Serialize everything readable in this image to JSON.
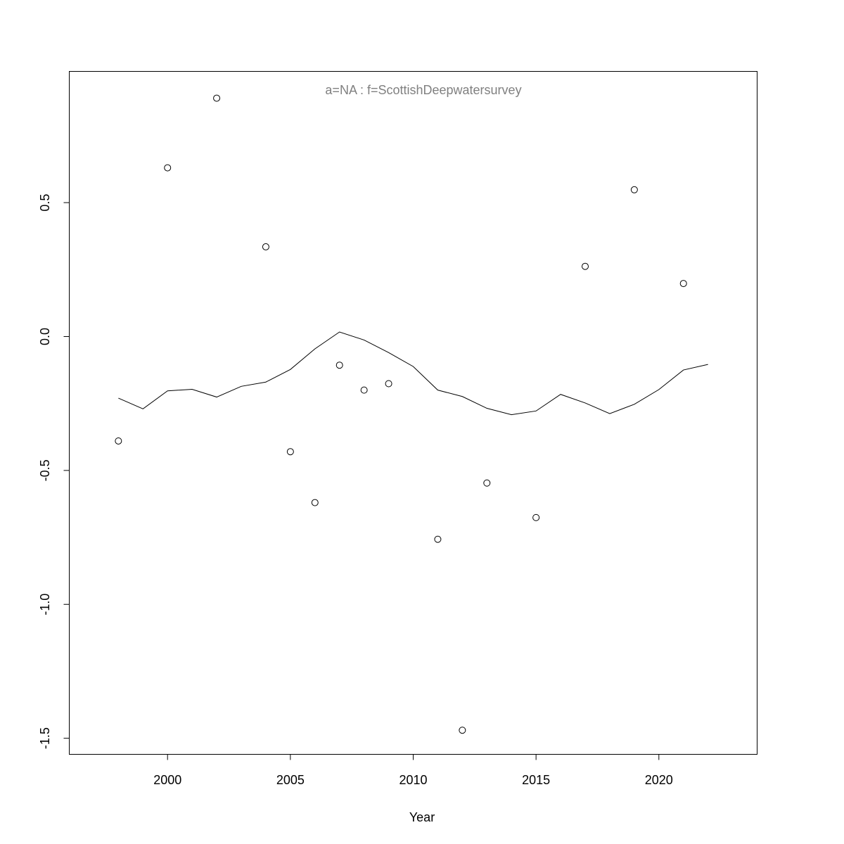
{
  "chart_data": {
    "type": "scatter",
    "title": "a=NA  :  f=ScottishDeepwatersurvey",
    "xlabel": "Year",
    "ylabel": "",
    "xlim": [
      1996,
      2024
    ],
    "ylim": [
      -1.56,
      0.99
    ],
    "xticks": [
      2000,
      2005,
      2010,
      2015,
      2020
    ],
    "yticks": [
      -1.5,
      -1.0,
      -0.5,
      0.0,
      0.5
    ],
    "ytick_labels": [
      "-1.5",
      "-1.0",
      "-0.5",
      "0.0",
      "0.5"
    ],
    "grid": false,
    "series": [
      {
        "style": "points",
        "x": [
          1998,
          2000,
          2002,
          2004,
          2005,
          2006,
          2007,
          2008,
          2009,
          2011,
          2012,
          2013,
          2015,
          2017,
          2019,
          2021
        ],
        "y": [
          -0.39,
          0.63,
          0.89,
          0.335,
          -0.43,
          -0.62,
          -0.107,
          -0.2,
          -0.176,
          -0.757,
          -1.47,
          -0.547,
          -0.676,
          0.262,
          0.548,
          0.198
        ]
      },
      {
        "style": "line",
        "x": [
          1998,
          1999,
          2000,
          2001,
          2002,
          2003,
          2004,
          2005,
          2006,
          2007,
          2008,
          2009,
          2010,
          2011,
          2012,
          2013,
          2014,
          2015,
          2016,
          2017,
          2018,
          2019,
          2020,
          2021,
          2022
        ],
        "y": [
          -0.23,
          -0.27,
          -0.203,
          -0.197,
          -0.226,
          -0.186,
          -0.17,
          -0.123,
          -0.046,
          0.017,
          -0.013,
          -0.06,
          -0.112,
          -0.2,
          -0.224,
          -0.268,
          -0.292,
          -0.278,
          -0.216,
          -0.248,
          -0.288,
          -0.253,
          -0.198,
          -0.125,
          -0.104
        ]
      }
    ]
  }
}
